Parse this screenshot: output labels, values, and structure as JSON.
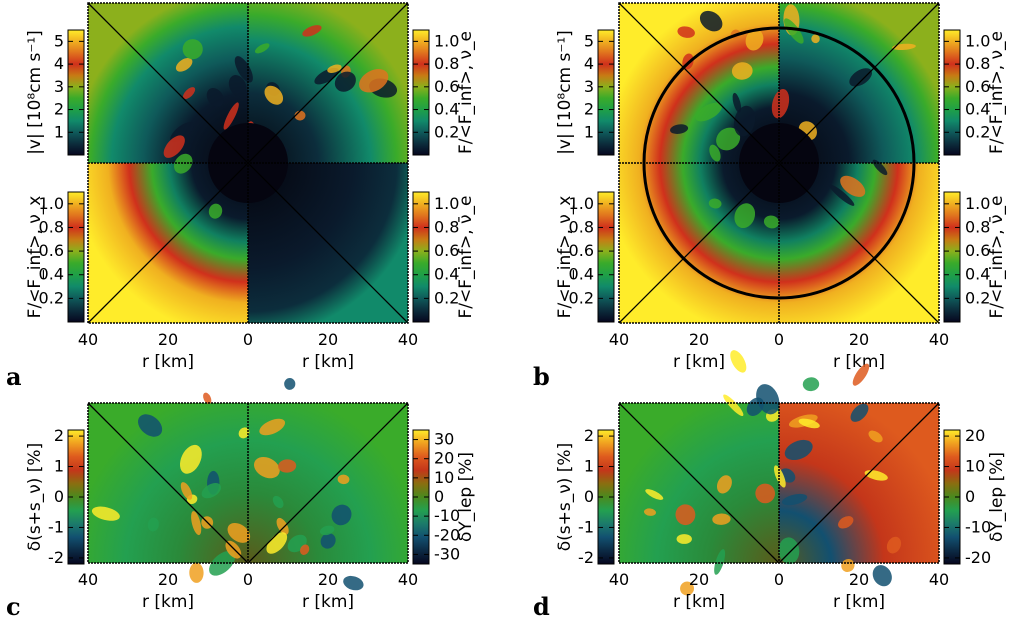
{
  "chart_data": [
    {
      "type": "heatmap",
      "panel": "a",
      "xlabel_left": "r [km]",
      "xlabel_right": "r [km]",
      "x_ticks_left": [
        "40",
        "20",
        "0"
      ],
      "x_ticks_right": [
        "0",
        "20",
        "40"
      ],
      "colorbars": [
        {
          "label": "|v| [10⁸cm s⁻¹]",
          "ticks": [
            "1",
            "2",
            "3",
            "4",
            "5"
          ],
          "range": [
            0,
            5.5
          ],
          "scheme": "rainbow"
        },
        {
          "label": "F/<F_inf>, ν_e",
          "ticks": [
            "0.2",
            "0.4",
            "0.6",
            "0.8",
            "1.0"
          ],
          "range": [
            0,
            1.1
          ],
          "scheme": "rainbow"
        },
        {
          "label": "F/<F_inf>, ν_x",
          "ticks": [
            "0.2",
            "0.4",
            "0.6",
            "0.8",
            "1.0"
          ],
          "range": [
            0,
            1.1
          ],
          "scheme": "rainbow"
        },
        {
          "label": "F/<F_inf>, ν̄_e",
          "ticks": [
            "0.2",
            "0.4",
            "0.6",
            "0.8",
            "1.0"
          ],
          "range": [
            0,
            1.1
          ],
          "scheme": "rainbow"
        }
      ]
    },
    {
      "type": "heatmap",
      "panel": "b",
      "xlabel_left": "r [km]",
      "xlabel_right": "r [km]",
      "x_ticks_left": [
        "40",
        "20",
        "0"
      ],
      "x_ticks_right": [
        "0",
        "20",
        "40"
      ],
      "colorbars": [
        {
          "label": "|v| [10⁸cm s⁻¹]",
          "ticks": [
            "1",
            "2",
            "3",
            "4",
            "5"
          ],
          "range": [
            0,
            5.5
          ],
          "scheme": "rainbow"
        },
        {
          "label": "F/<F_inf>, ν_e",
          "ticks": [
            "0.2",
            "0.4",
            "0.6",
            "0.8",
            "1.0"
          ],
          "range": [
            0,
            1.1
          ],
          "scheme": "rainbow"
        },
        {
          "label": "F/<F_inf>, ν_x",
          "ticks": [
            "0.2",
            "0.4",
            "0.6",
            "0.8",
            "1.0"
          ],
          "range": [
            0,
            1.1
          ],
          "scheme": "rainbow"
        },
        {
          "label": "F/<F_inf>, ν̄_e",
          "ticks": [
            "0.2",
            "0.4",
            "0.6",
            "0.8",
            "1.0"
          ],
          "range": [
            0,
            1.1
          ],
          "scheme": "rainbow"
        }
      ]
    },
    {
      "type": "heatmap",
      "panel": "c",
      "xlabel_left": "r [km]",
      "xlabel_right": "r [km]",
      "x_ticks_left": [
        "40",
        "20",
        "0"
      ],
      "x_ticks_right": [
        "0",
        "20",
        "40"
      ],
      "colorbars": [
        {
          "label": "δ(s+s_ν) [%]",
          "ticks": [
            "-2",
            "-1",
            "0",
            "1",
            "2"
          ],
          "range": [
            -2.2,
            2.2
          ],
          "scheme": "diverging"
        },
        {
          "label": "δY_lep [%]",
          "ticks": [
            "-30",
            "-20",
            "-10",
            "0",
            "10",
            "20",
            "30"
          ],
          "range": [
            -35,
            35
          ],
          "scheme": "diverging"
        }
      ]
    },
    {
      "type": "heatmap",
      "panel": "d",
      "xlabel_left": "r [km]",
      "xlabel_right": "r [km]",
      "x_ticks_left": [
        "40",
        "20",
        "0"
      ],
      "x_ticks_right": [
        "0",
        "20",
        "40"
      ],
      "colorbars": [
        {
          "label": "δ(s+s_ν) [%]",
          "ticks": [
            "-2",
            "-1",
            "0",
            "1",
            "2"
          ],
          "range": [
            -2.2,
            2.2
          ],
          "scheme": "diverging"
        },
        {
          "label": "δY_lep [%]",
          "ticks": [
            "-20",
            "-10",
            "0",
            "10",
            "20"
          ],
          "range": [
            -22,
            22
          ],
          "scheme": "diverging"
        }
      ]
    }
  ],
  "colors": {
    "rainbow": [
      "#06061e",
      "#0c2d3c",
      "#0f5a5a",
      "#118a6a",
      "#1fa047",
      "#3aab2a",
      "#8cb01c",
      "#c87a14",
      "#d0301c",
      "#e0731e",
      "#f0b020",
      "#ffec2a"
    ],
    "diverging": [
      "#06061e",
      "#0c2a44",
      "#125070",
      "#1c7a6a",
      "#23a050",
      "#4a8a1e",
      "#8a6e10",
      "#c4361a",
      "#de5a1e",
      "#f0a020",
      "#ffec2a"
    ]
  }
}
